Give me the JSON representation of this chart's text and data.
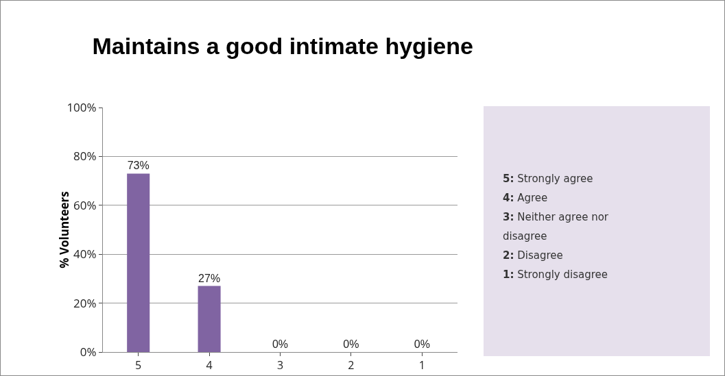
{
  "chart_data": {
    "type": "bar",
    "title": "Maintains a good intimate hygiene",
    "ylabel": "% Volunteers",
    "categories": [
      "5",
      "4",
      "3",
      "2",
      "1"
    ],
    "values": [
      73,
      27,
      0,
      0,
      0
    ],
    "value_labels": [
      "73%",
      "27%",
      "0%",
      "0%",
      "0%"
    ],
    "color": "#8064a2",
    "ylim": [
      0,
      100
    ],
    "yticks": [
      {
        "value": 0,
        "label": "0%"
      },
      {
        "value": 20,
        "label": "20%"
      },
      {
        "value": 40,
        "label": "40%"
      },
      {
        "value": 60,
        "label": "60%"
      },
      {
        "value": 80,
        "label": "80%"
      },
      {
        "value": 100,
        "label": "100%"
      }
    ],
    "grid": "y",
    "legend": false,
    "annotations": [
      "5: Strongly agree",
      "4: Agree",
      "3: Neither agree nor disagree",
      "2: Disagree",
      "1: Strongly disagree"
    ]
  }
}
